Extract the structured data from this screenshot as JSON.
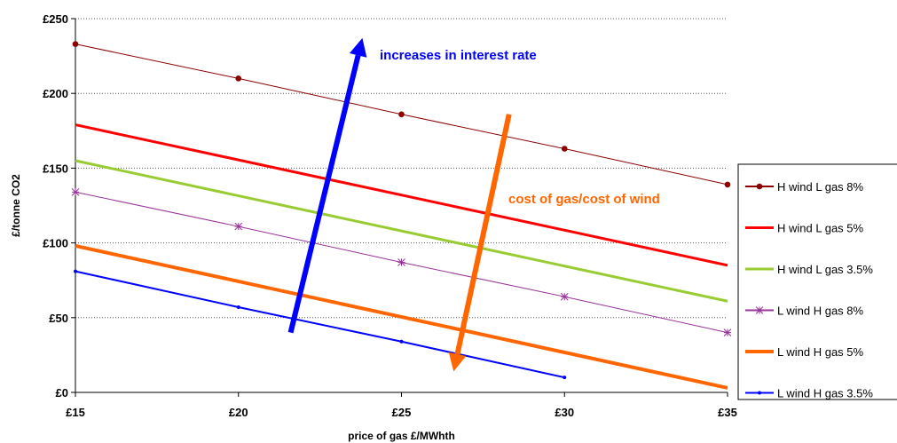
{
  "chart_data": {
    "type": "line",
    "xlabel": "price of gas £/MWhth",
    "ylabel": "£/tonne CO2",
    "xlim": [
      15,
      35
    ],
    "ylim": [
      0,
      250
    ],
    "x_ticks": [
      15,
      20,
      25,
      30,
      35
    ],
    "x_tick_labels": [
      "£15",
      "£20",
      "£25",
      "£30",
      "£35"
    ],
    "y_ticks": [
      0,
      50,
      100,
      150,
      200,
      250
    ],
    "y_tick_labels": [
      "£0",
      "£50",
      "£100",
      "£150",
      "£200",
      "£250"
    ],
    "grid": "horizontal dotted",
    "legend_position": "right",
    "series": [
      {
        "name": "H wind L gas 8%",
        "color": "#8b0000",
        "width": 1,
        "marker": "circle",
        "x": [
          15,
          20,
          25,
          30,
          35
        ],
        "y": [
          233,
          210,
          186,
          163,
          139
        ]
      },
      {
        "name": "H wind L gas 5%",
        "color": "#ff0000",
        "width": 3,
        "marker": "none",
        "x": [
          15,
          35
        ],
        "y": [
          179,
          85
        ]
      },
      {
        "name": "H wind L gas 3.5%",
        "color": "#99cc33",
        "width": 3,
        "marker": "none",
        "x": [
          15,
          35
        ],
        "y": [
          155,
          61
        ]
      },
      {
        "name": "L wind H gas 8%",
        "color": "#993399",
        "width": 1,
        "marker": "star",
        "x": [
          15,
          20,
          25,
          30,
          35
        ],
        "y": [
          134,
          111,
          87,
          64,
          40
        ]
      },
      {
        "name": "L wind H gas 5%",
        "color": "#ff6600",
        "width": 4,
        "marker": "none",
        "x": [
          15,
          35
        ],
        "y": [
          98,
          3
        ]
      },
      {
        "name": "L wind H gas 3.5%",
        "color": "#0000ff",
        "width": 2,
        "marker": "dot",
        "x": [
          15,
          20,
          25,
          30
        ],
        "y": [
          81,
          57,
          34,
          10
        ]
      }
    ],
    "annotations": [
      {
        "text": "increases in interest rate",
        "color": "#0000ff",
        "arrow": {
          "from": [
            21.6,
            40
          ],
          "to": [
            23.8,
            237
          ]
        }
      },
      {
        "text": "cost of gas/cost of wind",
        "color": "#ff6600",
        "arrow": {
          "from": [
            28.3,
            186
          ],
          "to": [
            26.6,
            14
          ]
        }
      }
    ]
  }
}
